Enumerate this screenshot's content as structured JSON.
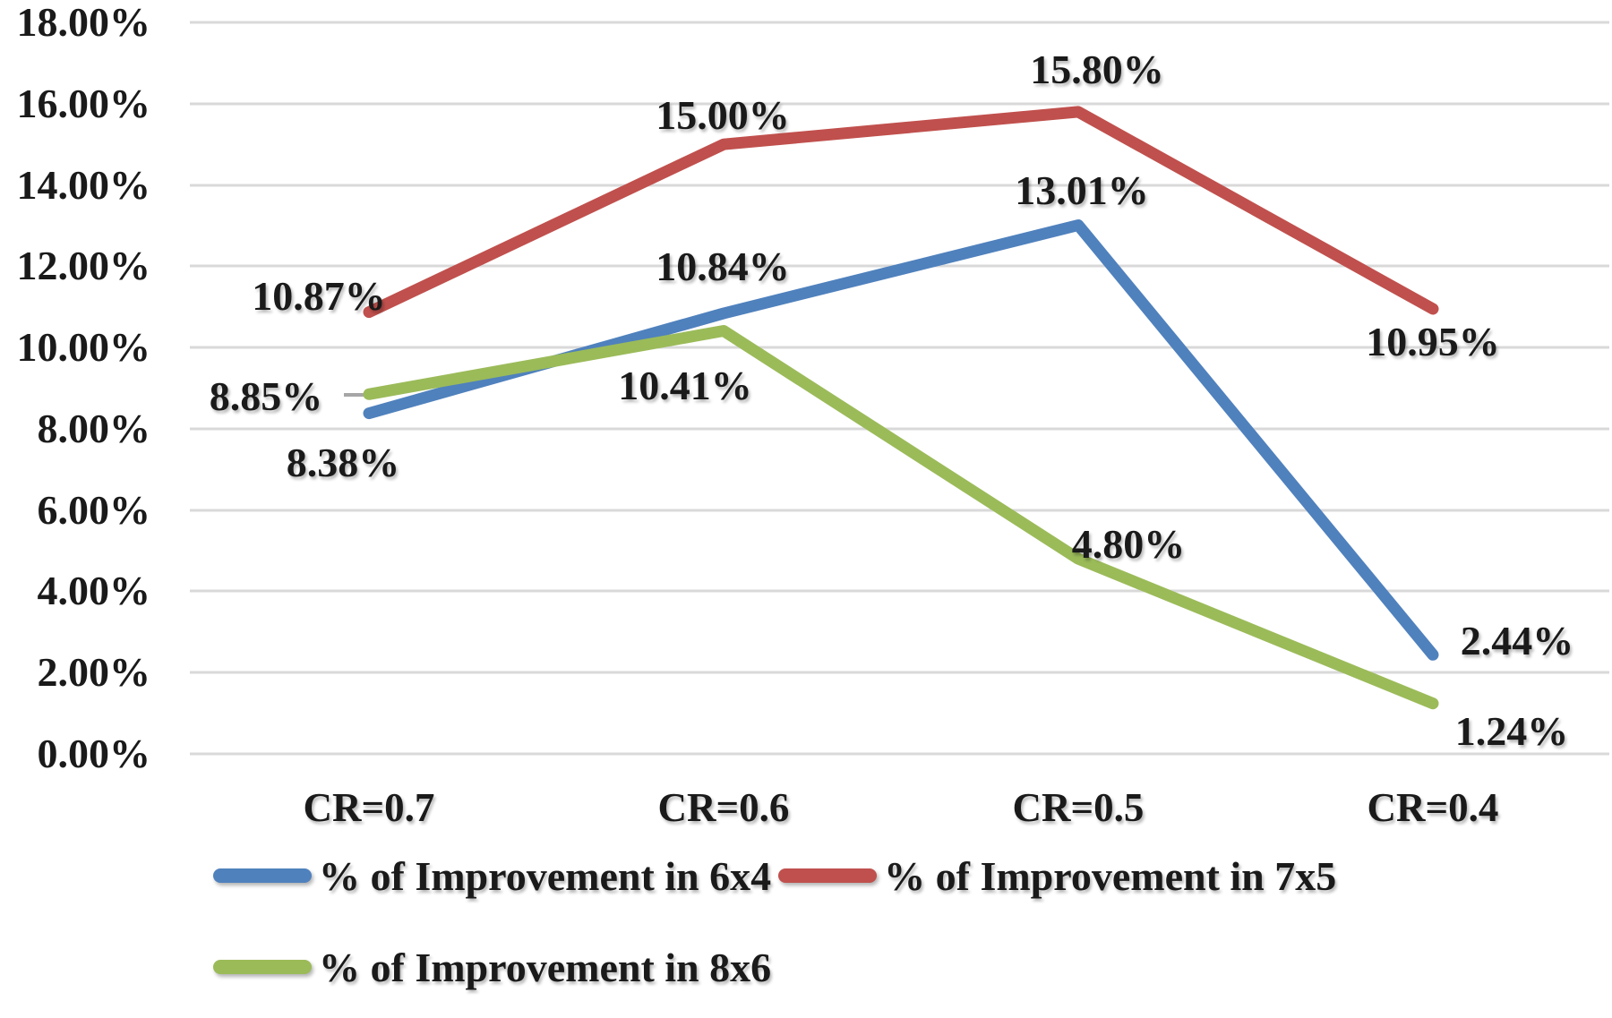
{
  "chart_data": {
    "type": "line",
    "title": "",
    "categories": [
      "CR=0.7",
      "CR=0.6",
      "CR=0.5",
      "CR=0.4"
    ],
    "series": [
      {
        "name": "% of Improvement in 6x4",
        "color": "#4F81BD",
        "values": [
          8.38,
          10.84,
          13.01,
          2.44
        ],
        "labels": [
          "8.38%",
          "10.84%",
          "13.01%",
          "2.44%"
        ]
      },
      {
        "name": "% of Improvement in 7x5",
        "color": "#C0504D",
        "values": [
          10.87,
          15.0,
          15.8,
          10.95
        ],
        "labels": [
          "10.87%",
          "15.00%",
          "15.80%",
          "10.95%"
        ]
      },
      {
        "name": "% of Improvement in 8x6",
        "color": "#9BBB59",
        "values": [
          8.85,
          10.41,
          4.8,
          1.24
        ],
        "labels": [
          "8.85%",
          "10.41%",
          "4.80%",
          "1.24%"
        ]
      }
    ],
    "y_axis": {
      "min": 0,
      "max": 18,
      "step": 2,
      "tick_labels": [
        "0.00%",
        "2.00%",
        "4.00%",
        "6.00%",
        "8.00%",
        "10.00%",
        "12.00%",
        "14.00%",
        "16.00%",
        "18.00%"
      ]
    },
    "xlabel": "",
    "ylabel": "",
    "grid": true,
    "legend_position": "bottom",
    "gridline_color": "#D9D9D9",
    "leader_line_color": "#A6A6A6",
    "text_color": "#1A1A1A",
    "background_color": "#FFFFFF"
  }
}
